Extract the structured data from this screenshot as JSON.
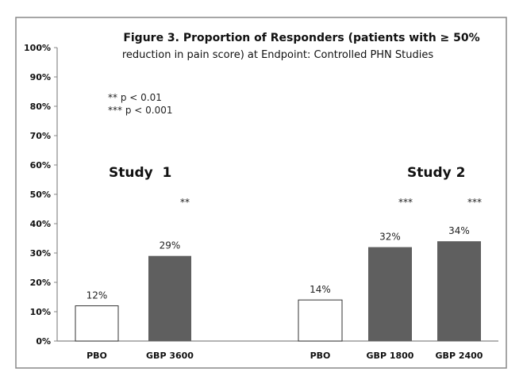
{
  "chart_data": {
    "type": "bar",
    "title": "Figure 3. Proportion of Responders (patients with ≥ 50%",
    "subtitle": "reduction in pain score) at Endpoint: Controlled PHN Studies",
    "ylim": [
      0,
      100
    ],
    "yticks": [
      "0%",
      "10%",
      "20%",
      "30%",
      "40%",
      "50%",
      "60%",
      "70%",
      "80%",
      "90%",
      "100%"
    ],
    "grid": false,
    "categories": [
      "PBO",
      "GBP 3600",
      "PBO",
      "GBP 1800",
      "GBP 2400"
    ],
    "values": [
      12,
      29,
      14,
      32,
      34
    ],
    "data_labels": [
      "12%",
      "29%",
      "14%",
      "32%",
      "34%"
    ],
    "significance": [
      "",
      "**",
      "",
      "***",
      "***"
    ],
    "groups": [
      {
        "label": "Study  1",
        "indices": [
          0,
          1
        ]
      },
      {
        "label": "Study 2",
        "indices": [
          2,
          3,
          4
        ]
      }
    ],
    "legend": [
      "** p < 0.01",
      "*** p < 0.001"
    ],
    "colors": {
      "placebo": "#ffffff",
      "gabapentin": "#5f5f5f",
      "outline": "#333333"
    }
  }
}
